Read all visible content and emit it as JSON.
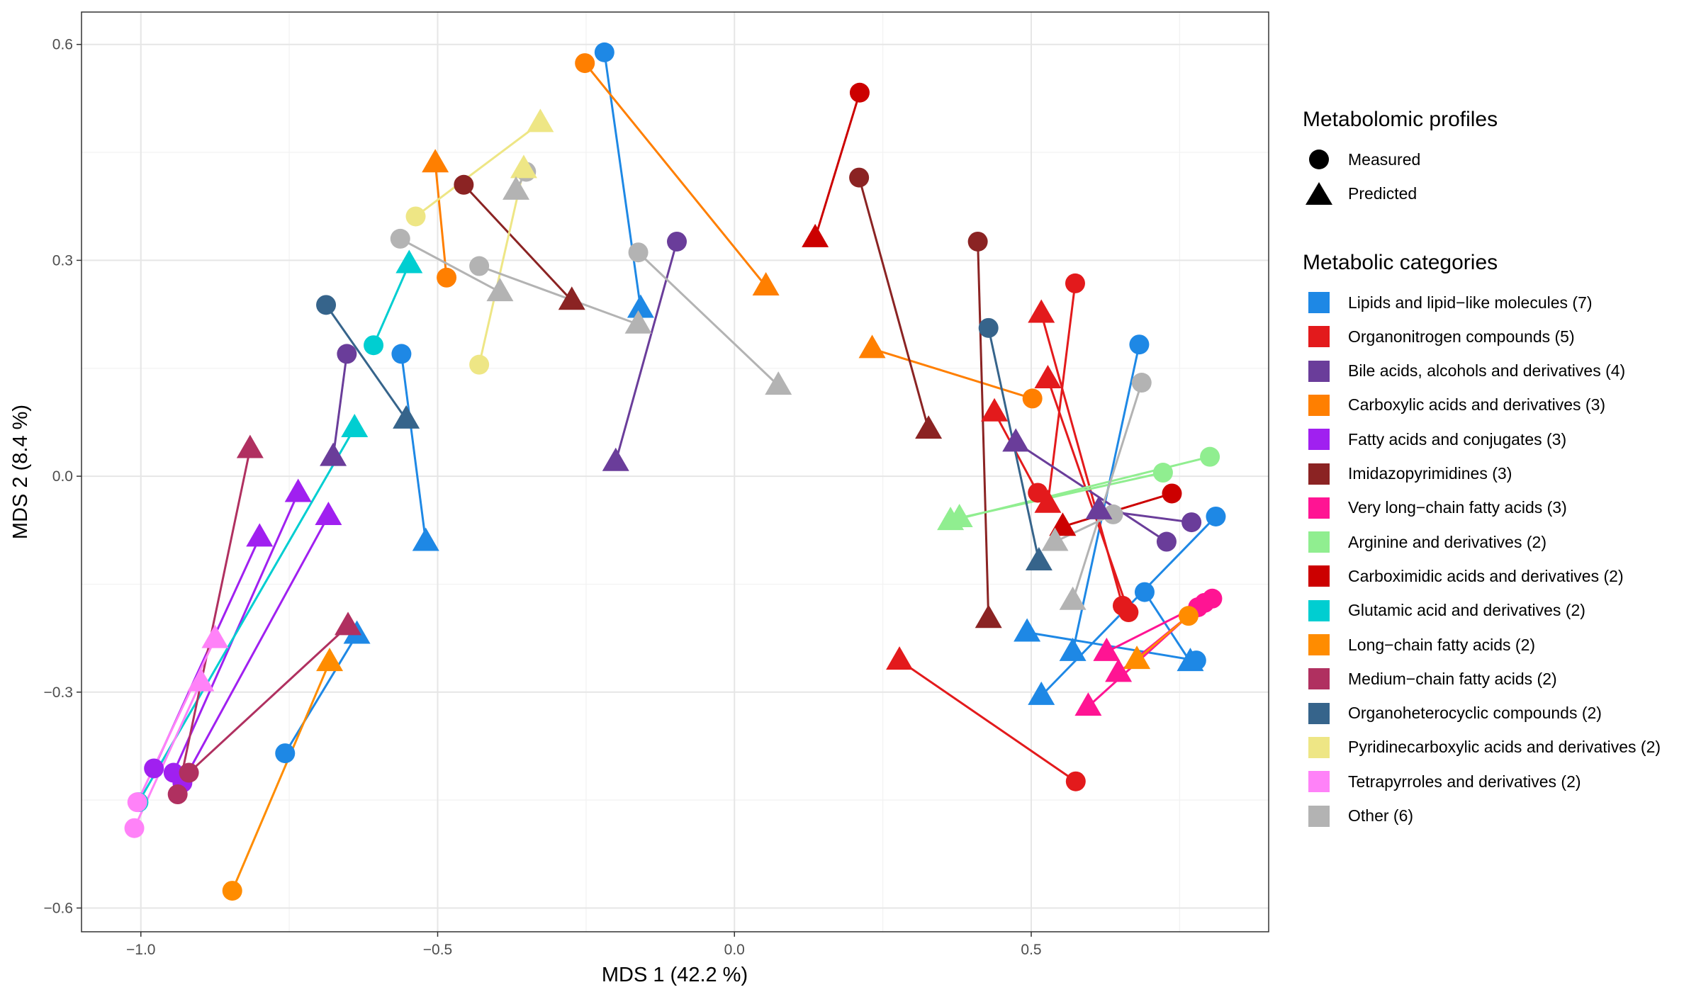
{
  "chart_data": {
    "type": "scatter",
    "xlabel": "MDS 1 (42.2 %)",
    "ylabel": "MDS 2 (8.4 %)",
    "xlim": [
      -1.1,
      0.9
    ],
    "ylim": [
      -0.633,
      0.645
    ],
    "xticks": [
      {
        "v": -1.0,
        "label": "−1.0"
      },
      {
        "v": -0.5,
        "label": "−0.5"
      },
      {
        "v": 0.0,
        "label": "0.0"
      },
      {
        "v": 0.5,
        "label": "0.5"
      }
    ],
    "yticks": [
      {
        "v": -0.6,
        "label": "−0.6"
      },
      {
        "v": -0.3,
        "label": "−0.3"
      },
      {
        "v": 0.0,
        "label": "0.0"
      },
      {
        "v": 0.3,
        "label": "0.3"
      },
      {
        "v": 0.6,
        "label": "0.6"
      }
    ],
    "grid": true,
    "legend_position": "right",
    "shape_legend": {
      "title": "Metabolomic profiles",
      "items": [
        {
          "label": "Measured",
          "shape": "circle"
        },
        {
          "label": "Predicted",
          "shape": "triangle"
        }
      ]
    },
    "color_legend_title": "Metabolic categories",
    "categories": [
      {
        "label": "Lipids and lipid−like molecules (7)",
        "color": "#1e88e5",
        "pairs": [
          {
            "measured": [
              -0.219,
              0.589
            ],
            "predicted": [
              -0.158,
              0.233
            ]
          },
          {
            "measured": [
              -0.561,
              0.17
            ],
            "predicted": [
              -0.52,
              -0.091
            ]
          },
          {
            "measured": [
              -0.757,
              -0.385
            ],
            "predicted": [
              -0.636,
              -0.22
            ]
          },
          {
            "measured": [
              0.682,
              0.183
            ],
            "predicted": [
              0.57,
              -0.244
            ]
          },
          {
            "measured": [
              0.811,
              -0.056
            ],
            "predicted": [
              0.517,
              -0.305
            ]
          },
          {
            "measured": [
              0.691,
              -0.161
            ],
            "predicted": [
              0.768,
              -0.258
            ]
          },
          {
            "measured": [
              0.778,
              -0.256
            ],
            "predicted": [
              0.493,
              -0.217
            ]
          }
        ]
      },
      {
        "label": "Organonitrogen compounds (5)",
        "color": "#e31a1c",
        "pairs": [
          {
            "measured": [
              0.574,
              0.268
            ],
            "predicted": [
              0.528,
              -0.038
            ]
          },
          {
            "measured": [
              0.654,
              -0.18
            ],
            "predicted": [
              0.517,
              0.226
            ]
          },
          {
            "measured": [
              0.664,
              -0.189
            ],
            "predicted": [
              0.528,
              0.135
            ]
          },
          {
            "measured": [
              0.511,
              -0.023
            ],
            "predicted": [
              0.438,
              0.089
            ]
          },
          {
            "measured": [
              0.575,
              -0.424
            ],
            "predicted": [
              0.278,
              -0.256
            ]
          }
        ]
      },
      {
        "label": "Bile acids, alcohols and derivatives (4)",
        "color": "#6a3d9a",
        "pairs": [
          {
            "measured": [
              -0.097,
              0.326
            ],
            "predicted": [
              -0.2,
              0.02
            ]
          },
          {
            "measured": [
              -0.653,
              0.17
            ],
            "predicted": [
              -0.676,
              0.027
            ]
          },
          {
            "measured": [
              0.728,
              -0.091
            ],
            "predicted": [
              0.474,
              0.047
            ]
          },
          {
            "measured": [
              0.77,
              -0.064
            ],
            "predicted": [
              0.614,
              -0.047
            ]
          }
        ]
      },
      {
        "label": "Carboxylic acids and derivatives (3)",
        "color": "#ff7f00",
        "pairs": [
          {
            "measured": [
              -0.252,
              0.574
            ],
            "predicted": [
              0.053,
              0.264
            ]
          },
          {
            "measured": [
              -0.485,
              0.276
            ],
            "predicted": [
              -0.504,
              0.435
            ]
          },
          {
            "measured": [
              0.502,
              0.108
            ],
            "predicted": [
              0.232,
              0.177
            ]
          }
        ]
      },
      {
        "label": "Fatty acids and conjugates (3)",
        "color": "#a020f0",
        "pairs": [
          {
            "measured": [
              -0.978,
              -0.406
            ],
            "predicted": [
              -0.8,
              -0.085
            ]
          },
          {
            "measured": [
              -0.945,
              -0.412
            ],
            "predicted": [
              -0.735,
              -0.023
            ]
          },
          {
            "measured": [
              -0.93,
              -0.426
            ],
            "predicted": [
              -0.684,
              -0.055
            ]
          }
        ]
      },
      {
        "label": "Imidazopyrimidines (3)",
        "color": "#8b2323",
        "pairs": [
          {
            "measured": [
              -0.456,
              0.405
            ],
            "predicted": [
              -0.274,
              0.244
            ]
          },
          {
            "measured": [
              0.21,
              0.415
            ],
            "predicted": [
              0.327,
              0.065
            ]
          },
          {
            "measured": [
              0.41,
              0.326
            ],
            "predicted": [
              0.428,
              -0.198
            ]
          }
        ]
      },
      {
        "label": "Very long−chain fatty acids (3)",
        "color": "#ff1493",
        "pairs": [
          {
            "measured": [
              0.805,
              -0.17
            ],
            "predicted": [
              0.627,
              -0.244
            ]
          },
          {
            "measured": [
              0.792,
              -0.176
            ],
            "predicted": [
              0.647,
              -0.273
            ]
          },
          {
            "measured": [
              0.781,
              -0.182
            ],
            "predicted": [
              0.596,
              -0.32
            ]
          }
        ]
      },
      {
        "label": "Arginine and derivatives (2)",
        "color": "#90ee90",
        "pairs": [
          {
            "measured": [
              0.801,
              0.027
            ],
            "predicted": [
              0.364,
              -0.062
            ]
          },
          {
            "measured": [
              0.722,
              0.005
            ],
            "predicted": [
              0.379,
              -0.058
            ]
          }
        ]
      },
      {
        "label": "Carboximidic acids and derivatives (2)",
        "color": "#cc0000",
        "pairs": [
          {
            "measured": [
              0.211,
              0.533
            ],
            "predicted": [
              0.136,
              0.331
            ]
          },
          {
            "measured": [
              0.737,
              -0.024
            ],
            "predicted": [
              0.553,
              -0.07
            ]
          }
        ]
      },
      {
        "label": "Glutamic acid and derivatives (2)",
        "color": "#00ced1",
        "pairs": [
          {
            "measured": [
              -0.608,
              0.182
            ],
            "predicted": [
              -0.548,
              0.295
            ]
          },
          {
            "measured": [
              -1.004,
              -0.453
            ],
            "predicted": [
              -0.64,
              0.067
            ]
          }
        ]
      },
      {
        "label": "Long−chain fatty acids (2)",
        "color": "#ff8c00",
        "pairs": [
          {
            "measured": [
              -0.846,
              -0.576
            ],
            "predicted": [
              -0.682,
              -0.258
            ]
          },
          {
            "measured": [
              0.765,
              -0.194
            ],
            "predicted": [
              0.678,
              -0.255
            ]
          }
        ]
      },
      {
        "label": "Medium−chain fatty acids (2)",
        "color": "#b03060",
        "pairs": [
          {
            "measured": [
              -0.919,
              -0.412
            ],
            "predicted": [
              -0.651,
              -0.208
            ]
          },
          {
            "measured": [
              -0.938,
              -0.442
            ],
            "predicted": [
              -0.816,
              0.038
            ]
          }
        ]
      },
      {
        "label": "Organoheterocyclic compounds (2)",
        "color": "#36648b",
        "pairs": [
          {
            "measured": [
              -0.688,
              0.238
            ],
            "predicted": [
              -0.553,
              0.079
            ]
          },
          {
            "measured": [
              0.428,
              0.206
            ],
            "predicted": [
              0.513,
              -0.118
            ]
          }
        ]
      },
      {
        "label": "Pyridinecarboxylic acids and derivatives (2)",
        "color": "#eee685",
        "pairs": [
          {
            "measured": [
              -0.537,
              0.361
            ],
            "predicted": [
              -0.327,
              0.491
            ]
          },
          {
            "measured": [
              -0.43,
              0.155
            ],
            "predicted": [
              -0.355,
              0.427
            ]
          }
        ]
      },
      {
        "label": "Tetrapyrroles and derivatives (2)",
        "color": "#ff82f8",
        "pairs": [
          {
            "measured": [
              -1.006,
              -0.453
            ],
            "predicted": [
              -0.875,
              -0.226
            ]
          },
          {
            "measured": [
              -1.011,
              -0.489
            ],
            "predicted": [
              -0.899,
              -0.286
            ]
          }
        ]
      },
      {
        "label": "Other (6)",
        "color": "#b3b3b3",
        "pairs": [
          {
            "measured": [
              -0.563,
              0.33
            ],
            "predicted": [
              -0.395,
              0.256
            ]
          },
          {
            "measured": [
              -0.43,
              0.292
            ],
            "predicted": [
              -0.162,
              0.211
            ]
          },
          {
            "measured": [
              -0.162,
              0.311
            ],
            "predicted": [
              0.074,
              0.126
            ]
          },
          {
            "measured": [
              -0.351,
              0.423
            ],
            "predicted": [
              -0.368,
              0.397
            ]
          },
          {
            "measured": [
              0.686,
              0.13
            ],
            "predicted": [
              0.57,
              -0.173
            ]
          },
          {
            "measured": [
              0.638,
              -0.053
            ],
            "predicted": [
              0.54,
              -0.091
            ]
          }
        ]
      }
    ]
  }
}
